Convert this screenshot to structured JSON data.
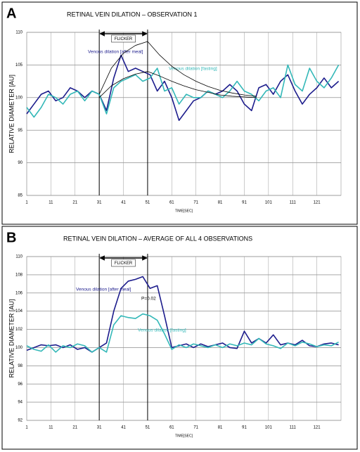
{
  "chart_data": [
    {
      "type": "line",
      "panel": "A",
      "title": "RETINAL VEIN DILATION – OBSERVATION 1",
      "xlabel": "TIME[SEC]",
      "ylabel": "RELATIVE DIAMETER [AU]",
      "x": [
        1,
        4,
        7,
        10,
        13,
        16,
        19,
        22,
        25,
        28,
        31,
        34,
        37,
        40,
        43,
        46,
        49,
        52,
        55,
        58,
        61,
        64,
        67,
        70,
        73,
        76,
        79,
        82,
        85,
        88,
        91,
        94,
        97,
        100,
        103,
        106,
        109,
        112,
        115,
        118,
        121,
        124,
        127,
        130
      ],
      "xlim": [
        1,
        131
      ],
      "xticks": [
        1,
        11,
        21,
        31,
        41,
        51,
        61,
        71,
        81,
        91,
        101,
        111,
        121
      ],
      "ylim": [
        85,
        110
      ],
      "yticks": [
        85,
        90,
        95,
        100,
        105,
        110
      ],
      "grid": true,
      "flicker": {
        "label": "FLICKER",
        "start": 31,
        "end": 51
      },
      "annotations": [],
      "series": [
        {
          "name": "Venous dilation [after meal]",
          "color": "#1c1c8c",
          "values": [
            97.5,
            99,
            100.5,
            101,
            99.5,
            100,
            101.5,
            101,
            100,
            101,
            100.5,
            98,
            103,
            106.5,
            104,
            104.5,
            104,
            103.5,
            101,
            102.5,
            100,
            96.5,
            98,
            99.5,
            100,
            101,
            100.5,
            101,
            102,
            101,
            99,
            98,
            101.5,
            102,
            100.5,
            102.5,
            103.5,
            101,
            99,
            100.5,
            101.5,
            103,
            101.5,
            102.5
          ]
        },
        {
          "name": "Venous dilation [fasting]",
          "color": "#33b8b8",
          "values": [
            98.5,
            97,
            98.5,
            100.5,
            100,
            99,
            100.5,
            101,
            99.5,
            101,
            100.5,
            97.5,
            101.5,
            102.5,
            103,
            103.5,
            102.5,
            103,
            104.5,
            101,
            101.5,
            99,
            100.5,
            100,
            100,
            101,
            100.5,
            100,
            101,
            102.5,
            101,
            100.5,
            99.5,
            101,
            101.5,
            100,
            105,
            102,
            101,
            104.5,
            102.5,
            101.5,
            103,
            105
          ]
        },
        {
          "color": "#000000",
          "x": [
            31,
            36,
            41,
            46,
            51,
            56,
            61,
            66,
            71,
            76,
            81,
            86,
            91,
            96
          ],
          "values": [
            100.5,
            104.5,
            106.8,
            108,
            108.6,
            106.5,
            104.8,
            103.5,
            102.5,
            101.7,
            101.1,
            100.7,
            100.4,
            100.2
          ]
        },
        {
          "color": "#000000",
          "x": [
            31,
            36,
            41,
            46,
            51,
            56,
            61,
            66,
            71,
            76,
            81,
            86,
            91,
            96
          ],
          "values": [
            100,
            101.8,
            102.9,
            103.6,
            104,
            103.3,
            102.5,
            101.8,
            101.2,
            100.8,
            100.4,
            100.2,
            100.1,
            100
          ]
        }
      ]
    },
    {
      "type": "line",
      "panel": "B",
      "title": "RETINAL VEIN DILATION – AVERAGE OF ALL 4 OBSERVATIONS",
      "xlabel": "TIME[SEC]",
      "ylabel": "RELATIVE DIAMETER [AU]",
      "x": [
        1,
        4,
        7,
        10,
        13,
        16,
        19,
        22,
        25,
        28,
        31,
        34,
        37,
        40,
        43,
        46,
        49,
        52,
        55,
        58,
        61,
        64,
        67,
        70,
        73,
        76,
        79,
        82,
        85,
        88,
        91,
        94,
        97,
        100,
        103,
        106,
        109,
        112,
        115,
        118,
        121,
        124,
        127,
        130
      ],
      "xlim": [
        1,
        131
      ],
      "xticks": [
        1,
        11,
        21,
        31,
        41,
        51,
        61,
        71,
        81,
        91,
        101,
        111,
        121
      ],
      "ylim": [
        92,
        110
      ],
      "yticks": [
        92,
        94,
        96,
        98,
        100,
        102,
        104,
        106,
        108,
        110
      ],
      "grid": true,
      "flicker": {
        "label": "FLICKER",
        "start": 31,
        "end": 51
      },
      "annotations": [
        "P=0.02"
      ],
      "series": [
        {
          "name": "Venous dilation [after meal]",
          "color": "#1c1c8c",
          "values": [
            99.7,
            100,
            100.3,
            100.2,
            100.3,
            100,
            100.3,
            99.8,
            100,
            99.5,
            100,
            100.5,
            104,
            106.5,
            107.3,
            107.5,
            107.8,
            106.5,
            106.8,
            103.5,
            100,
            100.2,
            100.4,
            100,
            100.4,
            100.1,
            100.3,
            100.5,
            100,
            99.9,
            101.8,
            100.5,
            101,
            100.5,
            101.4,
            100.3,
            100.5,
            100.3,
            100.8,
            100.2,
            100.1,
            100.4,
            100.5,
            100.3
          ]
        },
        {
          "name": "Venous dilation [fasting]",
          "color": "#33b8b8",
          "values": [
            100.2,
            99.8,
            99.6,
            100.3,
            99.5,
            100.2,
            100,
            100.4,
            100.2,
            99.5,
            100,
            99.5,
            102.5,
            103.5,
            103.3,
            103.2,
            103.7,
            103.5,
            103,
            101.5,
            99.8,
            100.3,
            100,
            100.4,
            100.2,
            100,
            100.3,
            100,
            100.4,
            100.2,
            100.5,
            100.3,
            101,
            100.4,
            100.2,
            99.9,
            100.5,
            100.2,
            100.6,
            100.4,
            100.1,
            100.3,
            100.2,
            100.6
          ]
        }
      ]
    }
  ]
}
